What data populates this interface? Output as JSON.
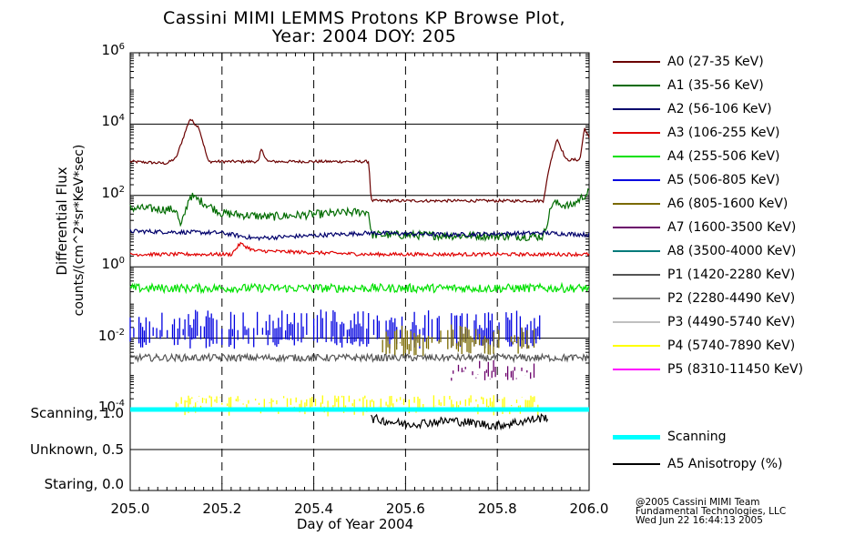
{
  "title_line1": "Cassini MIMI LEMMS Protons KP Browse Plot,",
  "title_line2": "Year: 2004 DOY: 205",
  "ylabel_line1": "Differential Flux",
  "ylabel_line2": "counts/(cm^2*sr*KeV*sec)",
  "xlabel": "Day of Year 2004",
  "copyright": [
    "@2005 Cassini MIMI Team",
    "Fundamental Technologies, LLC",
    "Wed Jun 22 16:44:13 2005"
  ],
  "status_labels": [
    "Scanning, 1.0",
    "Unknown, 0.5",
    "Staring, 0.0"
  ],
  "legend": [
    {
      "label": "A0 (27-35 KeV)",
      "color": "#6b0000"
    },
    {
      "label": "A1 (35-56 KeV)",
      "color": "#006b00"
    },
    {
      "label": "A2 (56-106 KeV)",
      "color": "#00006b"
    },
    {
      "label": "A3 (106-255 KeV)",
      "color": "#e00000"
    },
    {
      "label": "A4 (255-506 KeV)",
      "color": "#00e000"
    },
    {
      "label": "A5 (506-805 KeV)",
      "color": "#0000e0"
    },
    {
      "label": "A6 (805-1600 KeV)",
      "color": "#7a6a00"
    },
    {
      "label": "A7 (1600-3500 KeV)",
      "color": "#6b006b"
    },
    {
      "label": "A8 (3500-4000 KeV)",
      "color": "#007a7a"
    },
    {
      "label": "P1 (1420-2280 KeV)",
      "color": "#555555"
    },
    {
      "label": "P2 (2280-4490 KeV)",
      "color": "#808080"
    },
    {
      "label": "P3 (4490-5740 KeV)",
      "color": "#c0c0c0"
    },
    {
      "label": "P4 (5740-7890 KeV)",
      "color": "#ffff00"
    },
    {
      "label": "P5 (8310-11450 KeV)",
      "color": "#ff00ff"
    }
  ],
  "legend2": [
    {
      "label": "Scanning",
      "color": "#00ffff"
    },
    {
      "label": "A5 Anisotropy (%)",
      "color": "#000000"
    }
  ],
  "chart_data": {
    "type": "line",
    "title": "Cassini MIMI LEMMS Protons KP Browse Plot, Year: 2004 DOY: 205",
    "xlabel": "Day of Year 2004",
    "ylabel": "Differential Flux counts/(cm^2*sr*KeV*sec)",
    "xlim": [
      205.0,
      206.0
    ],
    "ylim_log10": [
      -4,
      6
    ],
    "xticks": [
      "205.0",
      "205.2",
      "205.4",
      "205.6",
      "205.8",
      "206.0"
    ],
    "yticks": [
      {
        "base": "10",
        "exp": "-4"
      },
      {
        "base": "10",
        "exp": "-2"
      },
      {
        "base": "10",
        "exp": "0"
      },
      {
        "base": "10",
        "exp": "2"
      },
      {
        "base": "10",
        "exp": "4"
      },
      {
        "base": "10",
        "exp": "6"
      }
    ],
    "series": [
      {
        "name": "A0 (27-35 KeV)",
        "color": "#6b0000",
        "noise": 0.04,
        "points": [
          [
            205.0,
            2.95
          ],
          [
            205.08,
            2.9
          ],
          [
            205.1,
            3.05
          ],
          [
            205.13,
            4.15
          ],
          [
            205.15,
            3.9
          ],
          [
            205.17,
            2.95
          ],
          [
            205.28,
            2.95
          ],
          [
            205.285,
            3.3
          ],
          [
            205.3,
            2.95
          ],
          [
            205.52,
            2.95
          ],
          [
            205.525,
            1.85
          ],
          [
            205.9,
            1.85
          ],
          [
            205.915,
            2.9
          ],
          [
            205.93,
            3.6
          ],
          [
            205.95,
            3.0
          ],
          [
            205.98,
            3.0
          ],
          [
            205.99,
            3.9
          ],
          [
            206.0,
            3.6
          ]
        ]
      },
      {
        "name": "A1 (35-56 KeV)",
        "color": "#006b00",
        "noise": 0.12,
        "points": [
          [
            205.0,
            1.65
          ],
          [
            205.1,
            1.6
          ],
          [
            205.11,
            1.1
          ],
          [
            205.13,
            2.0
          ],
          [
            205.16,
            1.8
          ],
          [
            205.2,
            1.5
          ],
          [
            205.3,
            1.4
          ],
          [
            205.52,
            1.55
          ],
          [
            205.525,
            0.9
          ],
          [
            205.9,
            0.85
          ],
          [
            205.92,
            1.8
          ],
          [
            205.96,
            1.7
          ],
          [
            206.0,
            2.1
          ]
        ]
      },
      {
        "name": "A2 (56-106 KeV)",
        "color": "#00006b",
        "noise": 0.06,
        "points": [
          [
            205.0,
            1.0
          ],
          [
            205.2,
            0.95
          ],
          [
            205.27,
            0.8
          ],
          [
            205.52,
            0.95
          ],
          [
            205.7,
            0.9
          ],
          [
            205.9,
            0.95
          ],
          [
            206.0,
            0.9
          ]
        ]
      },
      {
        "name": "A3 (106-255 KeV)",
        "color": "#e00000",
        "noise": 0.05,
        "points": [
          [
            205.0,
            0.35
          ],
          [
            205.22,
            0.35
          ],
          [
            205.24,
            0.65
          ],
          [
            205.27,
            0.45
          ],
          [
            205.52,
            0.35
          ],
          [
            206.0,
            0.35
          ]
        ]
      },
      {
        "name": "A4 (255-506 KeV)",
        "color": "#00e000",
        "noise": 0.12,
        "points": [
          [
            205.0,
            -0.6
          ],
          [
            206.0,
            -0.6
          ]
        ]
      },
      {
        "name": "P1 (1420-2280 KeV)",
        "color": "#555555",
        "noise": 0.1,
        "points": [
          [
            205.0,
            -2.55
          ],
          [
            206.0,
            -2.55
          ]
        ]
      },
      {
        "name": "A5 (506-805 KeV)",
        "color": "#0000e0",
        "spiky": [
          -2.3,
          -1.2
        ],
        "points": [
          [
            205.0,
            -1.5
          ],
          [
            205.9,
            -1.5
          ]
        ]
      },
      {
        "name": "A6 (805-1600 KeV)",
        "color": "#7a6a00",
        "spiky": [
          -2.5,
          -1.6
        ],
        "points": [
          [
            205.55,
            -1.9
          ],
          [
            205.88,
            -1.9
          ]
        ]
      },
      {
        "name": "A7 (1600-3500 KeV)",
        "color": "#6b006b",
        "spiky": [
          -3.2,
          -2.6
        ],
        "points": [
          [
            205.7,
            -2.8
          ],
          [
            205.88,
            -2.8
          ]
        ]
      },
      {
        "name": "P4 (5740-7890 KeV)",
        "color": "#ffff00",
        "spiky": [
          -4.0,
          -3.6
        ],
        "points": [
          [
            205.1,
            -3.8
          ],
          [
            205.9,
            -3.8
          ]
        ]
      },
      {
        "name": "Scanning",
        "color": "#00ffff",
        "status": true,
        "points": [
          [
            205.0,
            1.0
          ],
          [
            206.0,
            1.0
          ]
        ]
      },
      {
        "name": "A5 Anisotropy (%)",
        "color": "#000000",
        "status": true,
        "noise": 0.06,
        "points": [
          [
            205.525,
            0.88
          ],
          [
            205.6,
            0.8
          ],
          [
            205.7,
            0.85
          ],
          [
            205.8,
            0.78
          ],
          [
            205.91,
            0.9
          ]
        ]
      }
    ]
  }
}
